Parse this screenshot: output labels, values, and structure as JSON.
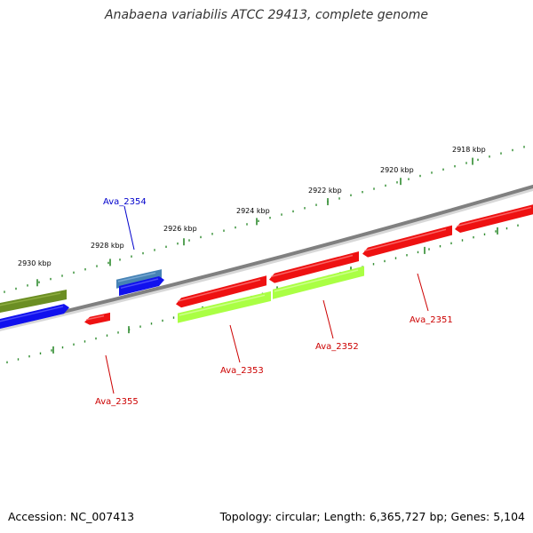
{
  "title": "Anabaena variabilis ATCC 29413, complete genome",
  "footer": {
    "accession": "Accession: NC_007413",
    "summary": "Topology: circular; Length: 6,365,727 bp; Genes: 5,104"
  },
  "colors": {
    "backbone": "#808080",
    "tick": "#2e8b2e",
    "forward_cds": "#ee1111",
    "reverse_cds": "#aaff44",
    "other_fwd": "#1111ee",
    "other_rev": "#6b8e23",
    "steelblue": "#4682b4",
    "label_red": "#cc0000",
    "label_blue": "#0000cc"
  },
  "scale_labels": [
    "2930 kbp",
    "2928 kbp",
    "2926 kbp",
    "2924 kbp",
    "2922 kbp",
    "2920 kbp",
    "2918 kbp"
  ],
  "gene_labels": [
    "Ava_2354",
    "Ava_2355",
    "Ava_2353",
    "Ava_2352",
    "Ava_2351"
  ]
}
